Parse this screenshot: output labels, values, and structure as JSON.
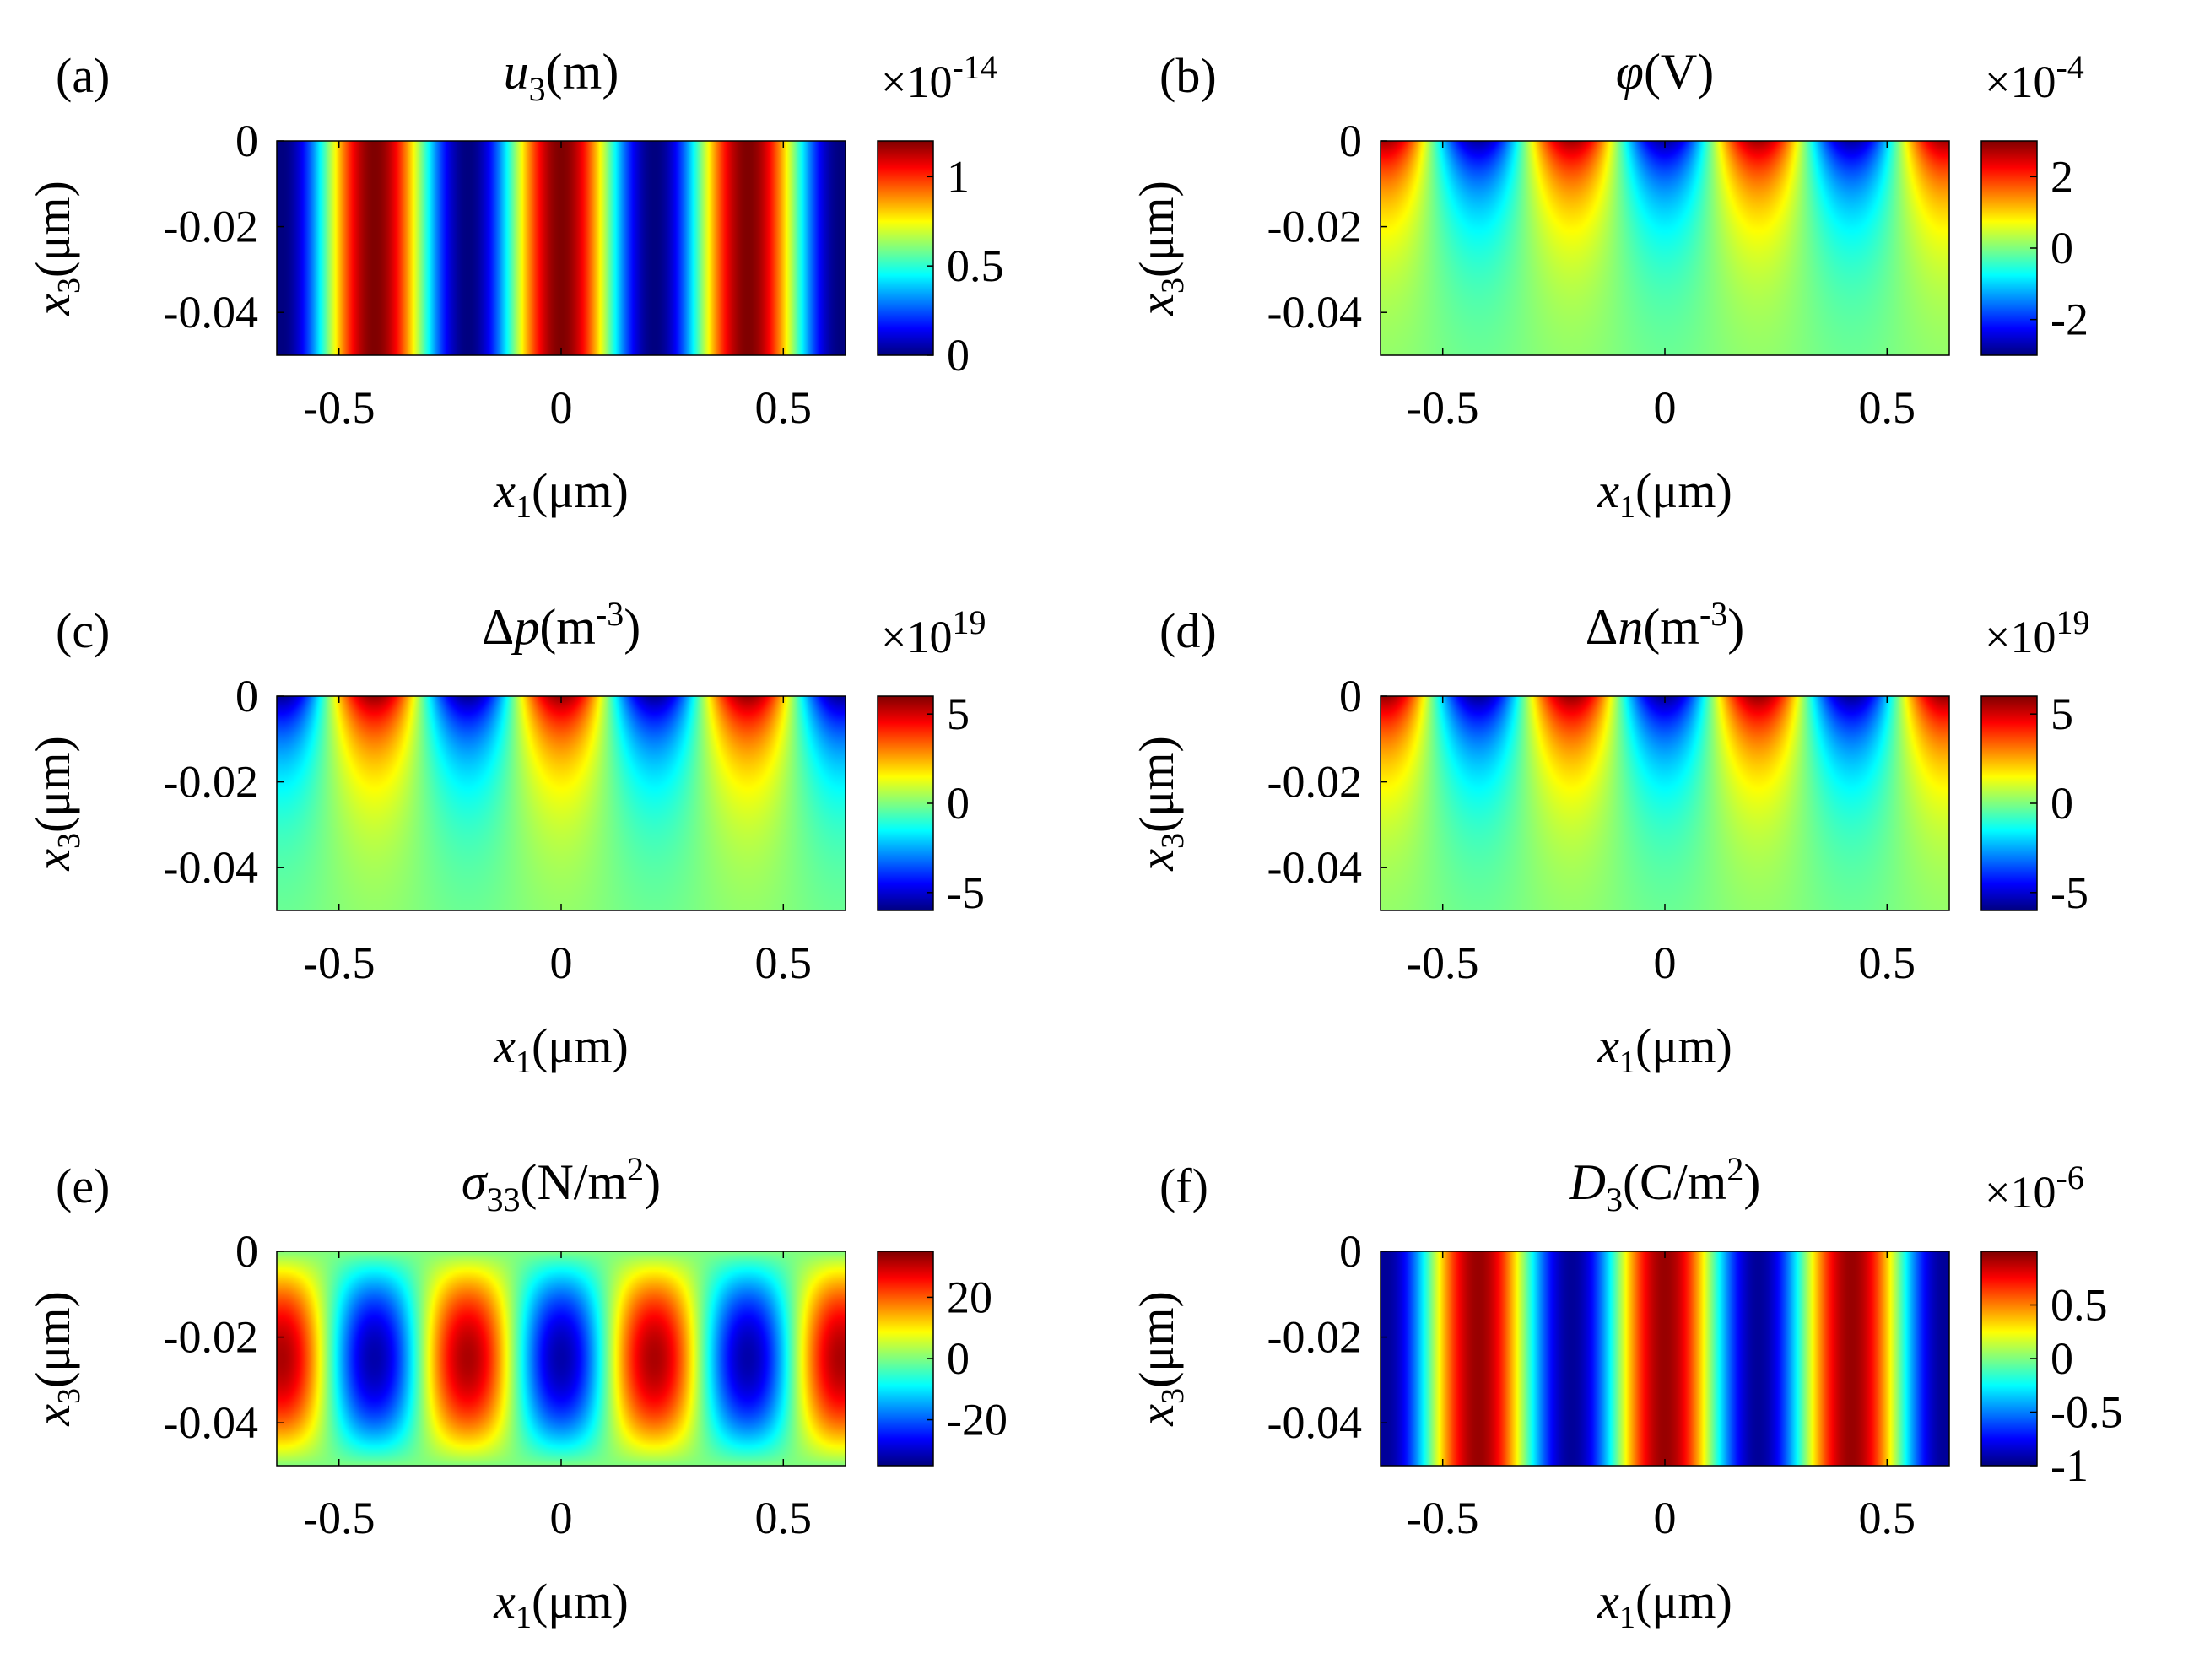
{
  "figure": {
    "axis_label_unit": "(μm)",
    "x_ticks": [
      "-0.5",
      "0",
      "0.5"
    ],
    "y_ticks": [
      "0",
      "-0.02",
      "-0.04"
    ]
  },
  "chart_data": [
    {
      "type": "heatmap",
      "panel": "(a)",
      "title": "u3(m)",
      "title_parts": {
        "symbol": "u",
        "sub": "3",
        "unit": "(m)",
        "sup": ""
      },
      "xlabel": "x1(μm)",
      "ylabel": "x3(μm)",
      "xlim": [
        -0.64,
        0.64
      ],
      "ylim": [
        -0.05,
        0
      ],
      "x_ticks": [
        -0.5,
        0,
        0.5
      ],
      "y_ticks": [
        0,
        -0.02,
        -0.04
      ],
      "field": "u3 = 0.6*(1 + cos(2*pi*x1/0.42)), uniform in x3",
      "clim": [
        0,
        1.2
      ],
      "colorbar": {
        "multiplier": "×10",
        "exponent": "-14",
        "ticks": [
          0,
          0.5,
          1
        ],
        "tick_labels": [
          "0",
          "0.5",
          "1"
        ]
      }
    },
    {
      "type": "heatmap",
      "panel": "(b)",
      "title": "φ(V)",
      "title_parts": {
        "symbol": "φ",
        "sub": "",
        "unit": "(V)",
        "sup": ""
      },
      "xlabel": "x1(μm)",
      "ylabel": "x3(μm)",
      "xlim": [
        -0.64,
        0.64
      ],
      "ylim": [
        -0.05,
        0
      ],
      "x_ticks": [
        -0.5,
        0,
        0.5
      ],
      "y_ticks": [
        0,
        -0.02,
        -0.04
      ],
      "field": "φ = 2.8*cos(2*pi*(x1-0.21)/0.42)*exp(x3/0.016)",
      "clim": [
        -3,
        3
      ],
      "colorbar": {
        "multiplier": "×10",
        "exponent": "-4",
        "ticks": [
          -2,
          0,
          2
        ],
        "tick_labels": [
          "-2",
          "0",
          "2"
        ]
      }
    },
    {
      "type": "heatmap",
      "panel": "(c)",
      "title": "Δp(m-3)",
      "title_parts": {
        "symbol": "p",
        "pre": "Δ",
        "sub": "",
        "unit": "(m",
        "sup": "-3"
      },
      "xlabel": "x1(μm)",
      "ylabel": "x3(μm)",
      "xlim": [
        -0.64,
        0.64
      ],
      "ylim": [
        -0.05,
        0
      ],
      "x_ticks": [
        -0.5,
        0,
        0.5
      ],
      "y_ticks": [
        0,
        -0.02,
        -0.04
      ],
      "field": "Δp = 5.8*cos(2*pi*x1/0.42)*exp(x3/0.016)",
      "clim": [
        -6,
        6
      ],
      "colorbar": {
        "multiplier": "×10",
        "exponent": "19",
        "ticks": [
          -5,
          0,
          5
        ],
        "tick_labels": [
          "-5",
          "0",
          "5"
        ]
      }
    },
    {
      "type": "heatmap",
      "panel": "(d)",
      "title": "Δn(m-3)",
      "title_parts": {
        "symbol": "n",
        "pre": "Δ",
        "sub": "",
        "unit": "(m",
        "sup": "-3"
      },
      "xlabel": "x1(μm)",
      "ylabel": "x3(μm)",
      "xlim": [
        -0.64,
        0.64
      ],
      "ylim": [
        -0.05,
        0
      ],
      "x_ticks": [
        -0.5,
        0,
        0.5
      ],
      "y_ticks": [
        0,
        -0.02,
        -0.04
      ],
      "field": "Δn = 5.8*cos(2*pi*(x1-0.21)/0.42)*exp(x3/0.016)",
      "clim": [
        -6,
        6
      ],
      "colorbar": {
        "multiplier": "×10",
        "exponent": "19",
        "ticks": [
          -5,
          0,
          5
        ],
        "tick_labels": [
          "-5",
          "0",
          "5"
        ]
      }
    },
    {
      "type": "heatmap",
      "panel": "(e)",
      "title": "σ33(N/m2)",
      "title_parts": {
        "symbol": "σ",
        "sub": "33",
        "unit": "(N/m",
        "sup": "2"
      },
      "xlabel": "x1(μm)",
      "ylabel": "x3(μm)",
      "xlim": [
        -0.64,
        0.64
      ],
      "ylim": [
        -0.05,
        0
      ],
      "x_ticks": [
        -0.5,
        0,
        0.5
      ],
      "y_ticks": [
        0,
        -0.02,
        -0.04
      ],
      "field": "σ33 = 32*cos(2*pi*(x1-0.21)/0.42)*sin(pi*(-x3)/0.05)",
      "clim": [
        -35,
        35
      ],
      "colorbar": {
        "multiplier": "",
        "exponent": "",
        "ticks": [
          -20,
          0,
          20
        ],
        "tick_labels": [
          "-20",
          "0",
          "20"
        ]
      }
    },
    {
      "type": "heatmap",
      "panel": "(f)",
      "title": "D3(C/m2)",
      "title_parts": {
        "symbol": "D",
        "sub": "3",
        "unit": "(C/m",
        "sup": "2"
      },
      "xlabel": "x1(μm)",
      "ylabel": "x3(μm)",
      "xlim": [
        -0.64,
        0.64
      ],
      "ylim": [
        -0.05,
        0
      ],
      "x_ticks": [
        -0.5,
        0,
        0.5
      ],
      "y_ticks": [
        0,
        -0.02,
        -0.04
      ],
      "field": "D3 = 0.95*cos(2*pi*x1/0.42), uniform in x3",
      "clim": [
        -1,
        1
      ],
      "colorbar": {
        "multiplier": "×10",
        "exponent": "-6",
        "ticks": [
          -1,
          -0.5,
          0,
          0.5
        ],
        "tick_labels": [
          "-1",
          "-0.5",
          "0",
          "0.5"
        ]
      }
    }
  ]
}
